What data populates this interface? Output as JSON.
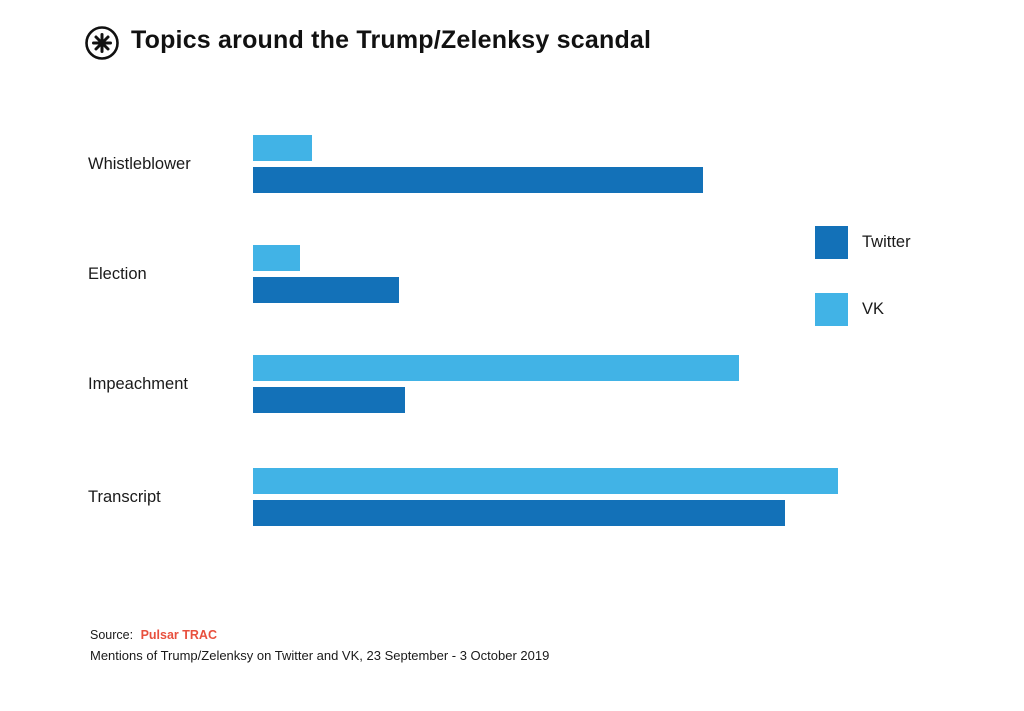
{
  "header": {
    "title": "Topics around the Trump/Zelenksy scandal"
  },
  "icons": {
    "logo": "pulsar-starburst-logo"
  },
  "colors": {
    "twitter": "#1371b8",
    "vk": "#41b3e6",
    "source_accent": "#e8503e",
    "text": "#1a1a1a"
  },
  "legend": [
    {
      "label": "Twitter",
      "color": "#1371b8"
    },
    {
      "label": "VK",
      "color": "#41b3e6"
    }
  ],
  "footer": {
    "source_prefix": "Source:",
    "source_name": "Pulsar TRAC",
    "caption": "Mentions of Trump/Zelenksy on Twitter and VK, 23 September - 3  October 2019"
  },
  "chart_data": {
    "type": "bar",
    "orientation": "horizontal",
    "title": "Topics around the Trump/Zelenksy scandal",
    "xlabel": "",
    "ylabel": "",
    "categories": [
      "Whistleblower",
      "Election",
      "Impeachment",
      "Transcript"
    ],
    "series": [
      {
        "name": "VK",
        "color": "#41b3e6",
        "values": [
          10,
          8,
          83,
          100
        ]
      },
      {
        "name": "Twitter",
        "color": "#1371b8",
        "values": [
          77,
          25,
          26,
          91
        ]
      }
    ],
    "value_range": [
      0,
      100
    ],
    "units": "relative mention volume (longest bar = 100)",
    "grid": false,
    "axis_labels_visible": false,
    "legend_position": "right",
    "bar_order_in_group": [
      "VK",
      "Twitter"
    ]
  }
}
